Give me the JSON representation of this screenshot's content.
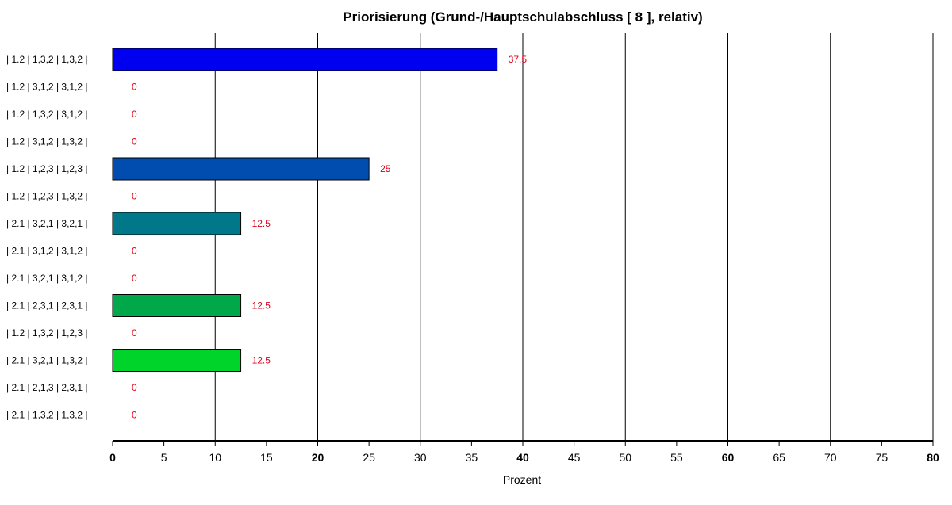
{
  "chart_data": {
    "type": "bar",
    "orientation": "horizontal",
    "title": "Priorisierung (Grund-/Hauptschulabschluss [ 8 ], relativ)",
    "xlabel": "Prozent",
    "ylabel": "",
    "xlim": [
      0,
      80
    ],
    "x_ticks": [
      0,
      5,
      10,
      15,
      20,
      25,
      30,
      35,
      40,
      45,
      50,
      55,
      60,
      65,
      70,
      75,
      80
    ],
    "x_tick_labels": [
      "0",
      "5",
      "10",
      "15",
      "20",
      "25",
      "30",
      "35",
      "40",
      "45",
      "50",
      "55",
      "60",
      "65",
      "70",
      "75",
      "80"
    ],
    "bold_ticks": [
      0,
      20,
      40,
      60,
      80
    ],
    "gridlines_at": [
      10,
      20,
      30,
      40,
      50,
      60,
      70,
      80
    ],
    "grid": true,
    "categories": [
      "| 1.2 | 1,3,2 | 1,3,2 |",
      "| 1.2 | 3,1,2 | 3,1,2 |",
      "| 1.2 | 1,3,2 | 3,1,2 |",
      "| 1.2 | 3,1,2 | 1,3,2 |",
      "| 1.2 | 1,2,3 | 1,2,3 |",
      "| 1.2 | 1,2,3 | 1,3,2 |",
      "| 2.1 | 3,2,1 | 3,2,1 |",
      "| 2.1 | 3,1,2 | 3,1,2 |",
      "| 2.1 | 3,2,1 | 3,1,2 |",
      "| 2.1 | 2,3,1 | 2,3,1 |",
      "| 1.2 | 1,3,2 | 1,2,3 |",
      "| 2.1 | 3,2,1 | 1,3,2 |",
      "| 2.1 | 2,1,3 | 2,3,1 |",
      "| 2.1 | 1,3,2 | 1,3,2 |"
    ],
    "values": [
      37.5,
      0,
      0,
      0,
      25,
      0,
      12.5,
      0,
      0,
      12.5,
      0,
      12.5,
      0,
      0
    ],
    "value_labels": [
      "37.5",
      "0",
      "0",
      "0",
      "25",
      "0",
      "12.5",
      "0",
      "0",
      "12.5",
      "0",
      "12.5",
      "0",
      "0"
    ],
    "bar_colors": [
      "#0000f0",
      "#0000f0",
      "#0000f0",
      "#0000f0",
      "#004daf",
      "#004daf",
      "#00788a",
      "#00788a",
      "#00788a",
      "#00a84a",
      "#00a84a",
      "#00d42a",
      "#00d42a",
      "#00d42a"
    ],
    "value_label_color": "#e0001b"
  }
}
